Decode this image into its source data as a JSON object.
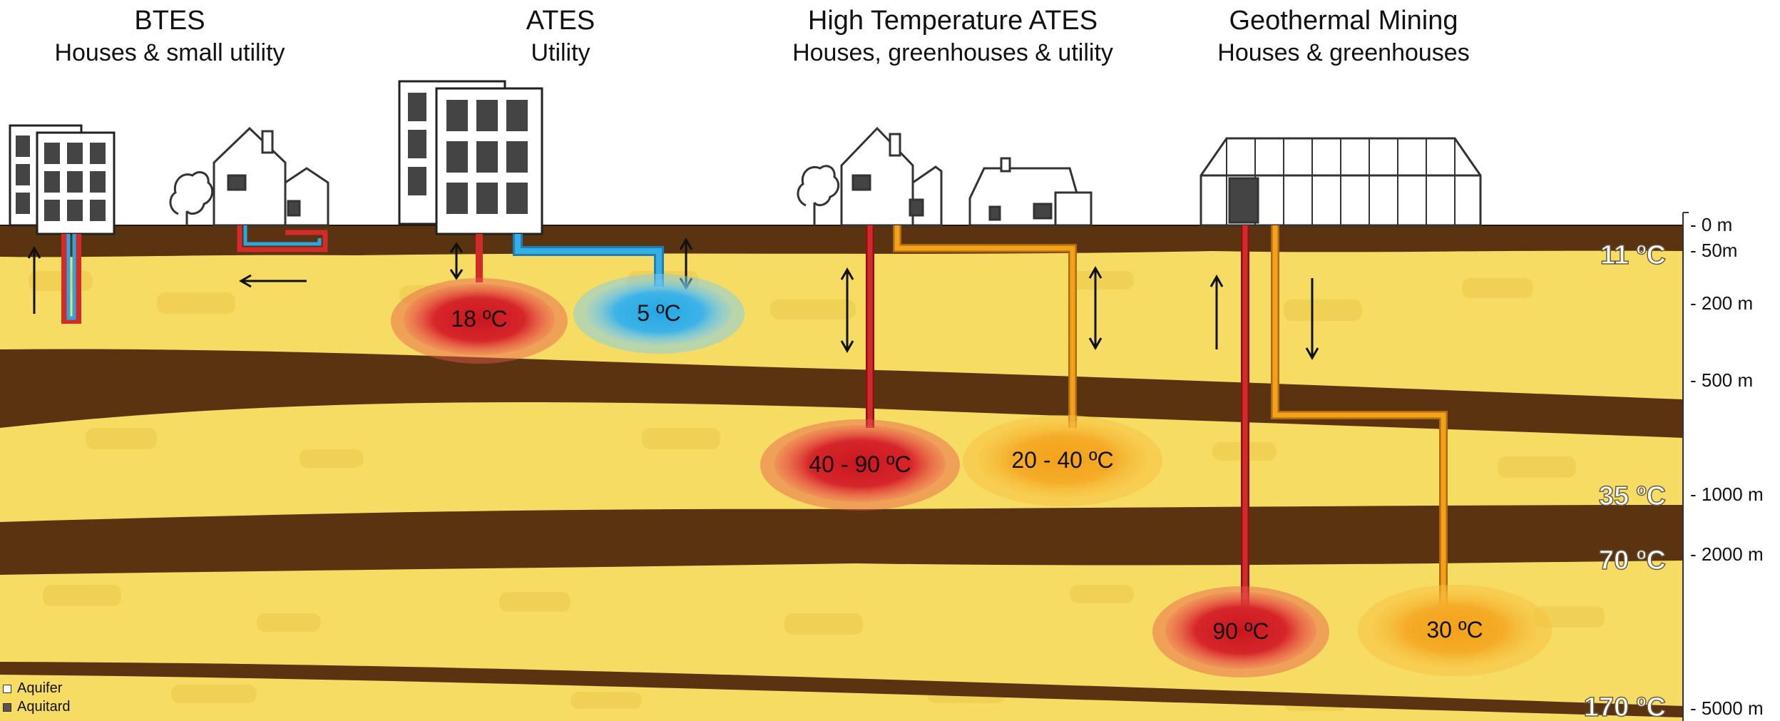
{
  "headers": [
    {
      "title": "BTES",
      "subtitle": "Houses & small utility"
    },
    {
      "title": "ATES",
      "subtitle": "Utility"
    },
    {
      "title": "High Temperature ATES",
      "subtitle": "Houses, greenhouses & utility"
    },
    {
      "title": "Geothermal Mining",
      "subtitle": "Houses & greenhouses"
    }
  ],
  "depth_scale": [
    "- 0 m",
    "- 50m",
    "- 200 m",
    "- 500 m",
    "- 1000 m",
    "- 2000 m",
    "- 5000 m"
  ],
  "ground_temperatures": [
    "11 ºC",
    "35 ºC",
    "70 ºC",
    "170 ºC"
  ],
  "reservoirs": [
    {
      "label": "18 ºC",
      "kind": "warm"
    },
    {
      "label": "5 ºC",
      "kind": "cold"
    },
    {
      "label": "40 - 90 ºC",
      "kind": "hot"
    },
    {
      "label": "20 - 40 ºC",
      "kind": "mild"
    },
    {
      "label": "90 ºC",
      "kind": "hot"
    },
    {
      "label": "30 ºC",
      "kind": "mild"
    }
  ],
  "legend": [
    {
      "label": "Aquifer",
      "color": "#ffffff"
    },
    {
      "label": "Aquitard",
      "color": "#555555"
    }
  ],
  "colors": {
    "aquifer": "#f6dc62",
    "aquitard": "#5a3311",
    "hot": "#cc1f25",
    "warm": "#d32a2a",
    "cold": "#2aa6e0",
    "mild": "#f2a21a"
  }
}
